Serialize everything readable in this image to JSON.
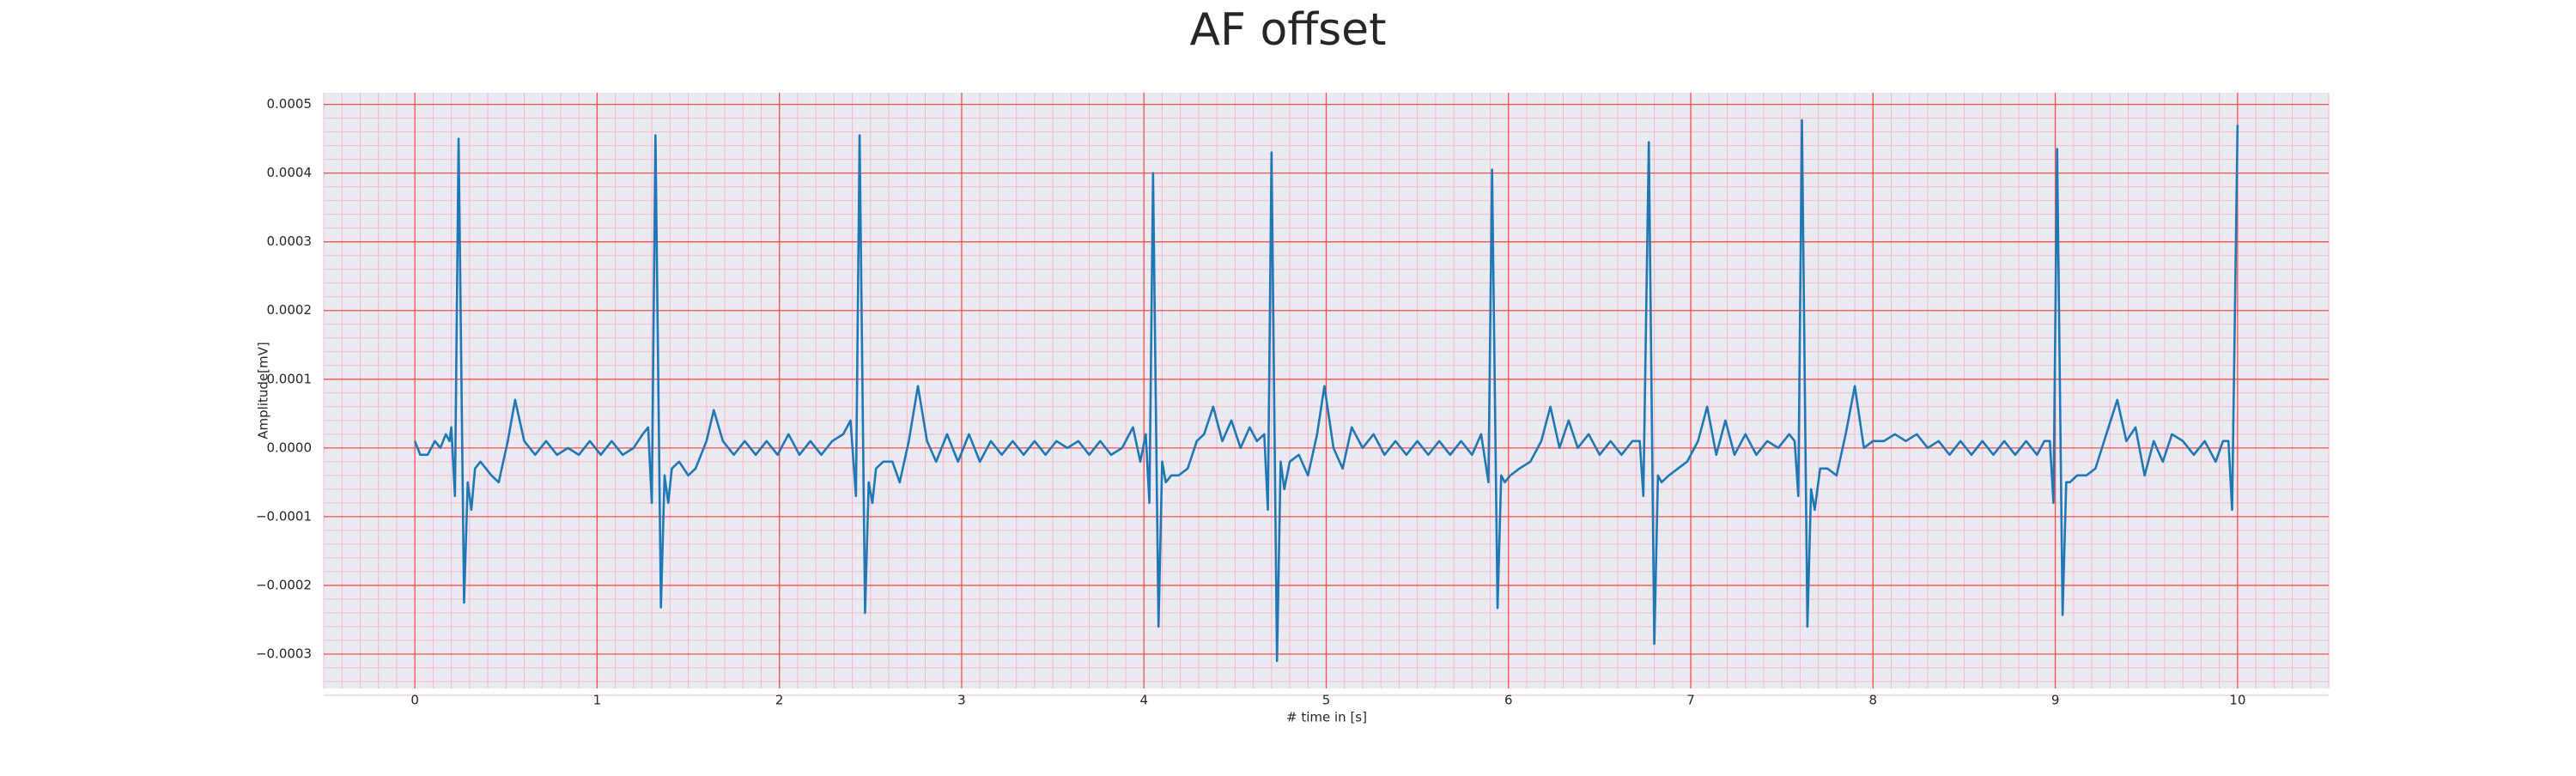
{
  "chart_data": {
    "type": "line",
    "title": "AF offset",
    "x_label": "# time in [s]",
    "y_label": "Amplitude[mV]",
    "color": "#1f77b4",
    "background": "#eaeaf2",
    "grid": true,
    "grid_color": "#ff4d4d",
    "minor_grid": true,
    "minor_grid_color": "#f5b8c8",
    "xlim": [
      -0.5,
      10.5
    ],
    "xticks": [
      0,
      1,
      2,
      3,
      4,
      5,
      6,
      7,
      8,
      9,
      10
    ],
    "ylim": [
      -0.00035,
      0.000517
    ],
    "yticks": [
      {
        "value": -0.0003,
        "label": "−0.0003"
      },
      {
        "value": -0.0002,
        "label": "−0.0002"
      },
      {
        "value": -0.0001,
        "label": "−0.0001"
      },
      {
        "value": 0,
        "label": "0.0000"
      },
      0.0001,
      0.0002,
      0.0003,
      0.0004,
      0.0005
    ],
    "x": [
      0,
      0.03,
      0.07,
      0.11,
      0.14,
      0.17,
      0.19,
      0.2,
      0.22,
      0.24,
      0.27,
      0.29,
      0.31,
      0.33,
      0.36,
      0.42,
      0.46,
      0.51,
      0.55,
      0.6,
      0.66,
      0.72,
      0.78,
      0.84,
      0.9,
      0.96,
      1.02,
      1.08,
      1.14,
      1.2,
      1.25,
      1.28,
      1.3,
      1.32,
      1.35,
      1.37,
      1.39,
      1.41,
      1.45,
      1.5,
      1.54,
      1.6,
      1.64,
      1.69,
      1.75,
      1.81,
      1.87,
      1.93,
      1.99,
      2.05,
      2.11,
      2.17,
      2.23,
      2.29,
      2.35,
      2.39,
      2.42,
      2.44,
      2.47,
      2.49,
      2.51,
      2.53,
      2.57,
      2.62,
      2.66,
      2.71,
      2.76,
      2.81,
      2.86,
      2.92,
      2.98,
      3.04,
      3.1,
      3.16,
      3.22,
      3.28,
      3.34,
      3.4,
      3.46,
      3.52,
      3.58,
      3.64,
      3.7,
      3.76,
      3.82,
      3.88,
      3.94,
      3.98,
      4.01,
      4.03,
      4.05,
      4.08,
      4.1,
      4.12,
      4.15,
      4.19,
      4.24,
      4.29,
      4.33,
      4.38,
      4.43,
      4.48,
      4.53,
      4.58,
      4.62,
      4.66,
      4.68,
      4.7,
      4.73,
      4.75,
      4.77,
      4.8,
      4.85,
      4.9,
      4.95,
      4.99,
      5.04,
      5.09,
      5.14,
      5.2,
      5.26,
      5.32,
      5.38,
      5.44,
      5.5,
      5.56,
      5.62,
      5.68,
      5.74,
      5.8,
      5.85,
      5.89,
      5.91,
      5.94,
      5.96,
      5.98,
      6.01,
      6.06,
      6.12,
      6.18,
      6.23,
      6.28,
      6.33,
      6.38,
      6.44,
      6.5,
      6.56,
      6.62,
      6.68,
      6.72,
      6.74,
      6.77,
      6.8,
      6.82,
      6.84,
      6.88,
      6.93,
      6.98,
      7.04,
      7.09,
      7.14,
      7.19,
      7.24,
      7.3,
      7.36,
      7.42,
      7.48,
      7.54,
      7.57,
      7.59,
      7.61,
      7.64,
      7.66,
      7.68,
      7.71,
      7.75,
      7.8,
      7.85,
      7.9,
      7.95,
      8,
      8.06,
      8.12,
      8.18,
      8.24,
      8.3,
      8.36,
      8.42,
      8.48,
      8.54,
      8.6,
      8.66,
      8.72,
      8.78,
      8.84,
      8.9,
      8.94,
      8.97,
      8.99,
      9.01,
      9.04,
      9.06,
      9.08,
      9.12,
      9.17,
      9.22,
      9.28,
      9.34,
      9.39,
      9.44,
      9.49,
      9.54,
      9.59,
      9.64,
      9.7,
      9.76,
      9.82,
      9.88,
      9.92,
      9.95,
      9.97,
      10
    ],
    "values": [
      1e-05,
      -1e-05,
      -1e-05,
      1e-05,
      0,
      2e-05,
      1e-05,
      3e-05,
      -7e-05,
      0.00045,
      -0.000225,
      -5e-05,
      -9e-05,
      -3e-05,
      -2e-05,
      -4e-05,
      -5e-05,
      1e-05,
      7e-05,
      1e-05,
      -1e-05,
      1e-05,
      -1e-05,
      0,
      -1e-05,
      1e-05,
      -1e-05,
      1e-05,
      -1e-05,
      0,
      2e-05,
      3e-05,
      -8e-05,
      0.000455,
      -0.000232,
      -4e-05,
      -8e-05,
      -3e-05,
      -2e-05,
      -4e-05,
      -3e-05,
      1e-05,
      5.5e-05,
      1e-05,
      -1e-05,
      1e-05,
      -1e-05,
      1e-05,
      -1e-05,
      2e-05,
      -1e-05,
      1e-05,
      -1e-05,
      1e-05,
      2e-05,
      4e-05,
      -7e-05,
      0.000455,
      -0.00024,
      -5e-05,
      -8e-05,
      -3e-05,
      -2e-05,
      -2e-05,
      -5e-05,
      1e-05,
      9e-05,
      1e-05,
      -2e-05,
      2e-05,
      -2e-05,
      2e-05,
      -2e-05,
      1e-05,
      -1e-05,
      1e-05,
      -1e-05,
      1e-05,
      -1e-05,
      1e-05,
      0,
      1e-05,
      -1e-05,
      1e-05,
      -1e-05,
      0,
      3e-05,
      -2e-05,
      2e-05,
      -8e-05,
      0.0004,
      -0.00026,
      -2e-05,
      -5e-05,
      -4e-05,
      -4e-05,
      -3e-05,
      1e-05,
      2e-05,
      6e-05,
      1e-05,
      4e-05,
      0,
      3e-05,
      1e-05,
      2e-05,
      -9e-05,
      0.00043,
      -0.00031,
      -2e-05,
      -6e-05,
      -2e-05,
      -1e-05,
      -4e-05,
      2e-05,
      9e-05,
      0,
      -3e-05,
      3e-05,
      0,
      2e-05,
      -1e-05,
      1e-05,
      -1e-05,
      1e-05,
      -1e-05,
      1e-05,
      -1e-05,
      1e-05,
      -1e-05,
      2e-05,
      -5e-05,
      0.000405,
      -0.000233,
      -4e-05,
      -5e-05,
      -4e-05,
      -3e-05,
      -2e-05,
      1e-05,
      6e-05,
      0,
      4e-05,
      0,
      2e-05,
      -1e-05,
      1e-05,
      -1e-05,
      1e-05,
      1e-05,
      -7e-05,
      0.000445,
      -0.000285,
      -4e-05,
      -5e-05,
      -4e-05,
      -3e-05,
      -2e-05,
      1e-05,
      6e-05,
      -1e-05,
      4e-05,
      -1e-05,
      2e-05,
      -1e-05,
      1e-05,
      0,
      2e-05,
      1e-05,
      -7e-05,
      0.000477,
      -0.00026,
      -6e-05,
      -9e-05,
      -3e-05,
      -3e-05,
      -4e-05,
      2e-05,
      9e-05,
      0,
      1e-05,
      1e-05,
      2e-05,
      1e-05,
      2e-05,
      0,
      1e-05,
      -1e-05,
      1e-05,
      -1e-05,
      1e-05,
      -1e-05,
      1e-05,
      -1e-05,
      1e-05,
      -1e-05,
      1e-05,
      1e-05,
      -8e-05,
      0.000435,
      -0.000243,
      -5e-05,
      -5e-05,
      -4e-05,
      -4e-05,
      -3e-05,
      2e-05,
      7e-05,
      1e-05,
      3e-05,
      -4e-05,
      1e-05,
      -2e-05,
      2e-05,
      1e-05,
      -1e-05,
      1e-05,
      -2e-05,
      1e-05,
      1e-05,
      -9e-05,
      0.00047
    ]
  }
}
